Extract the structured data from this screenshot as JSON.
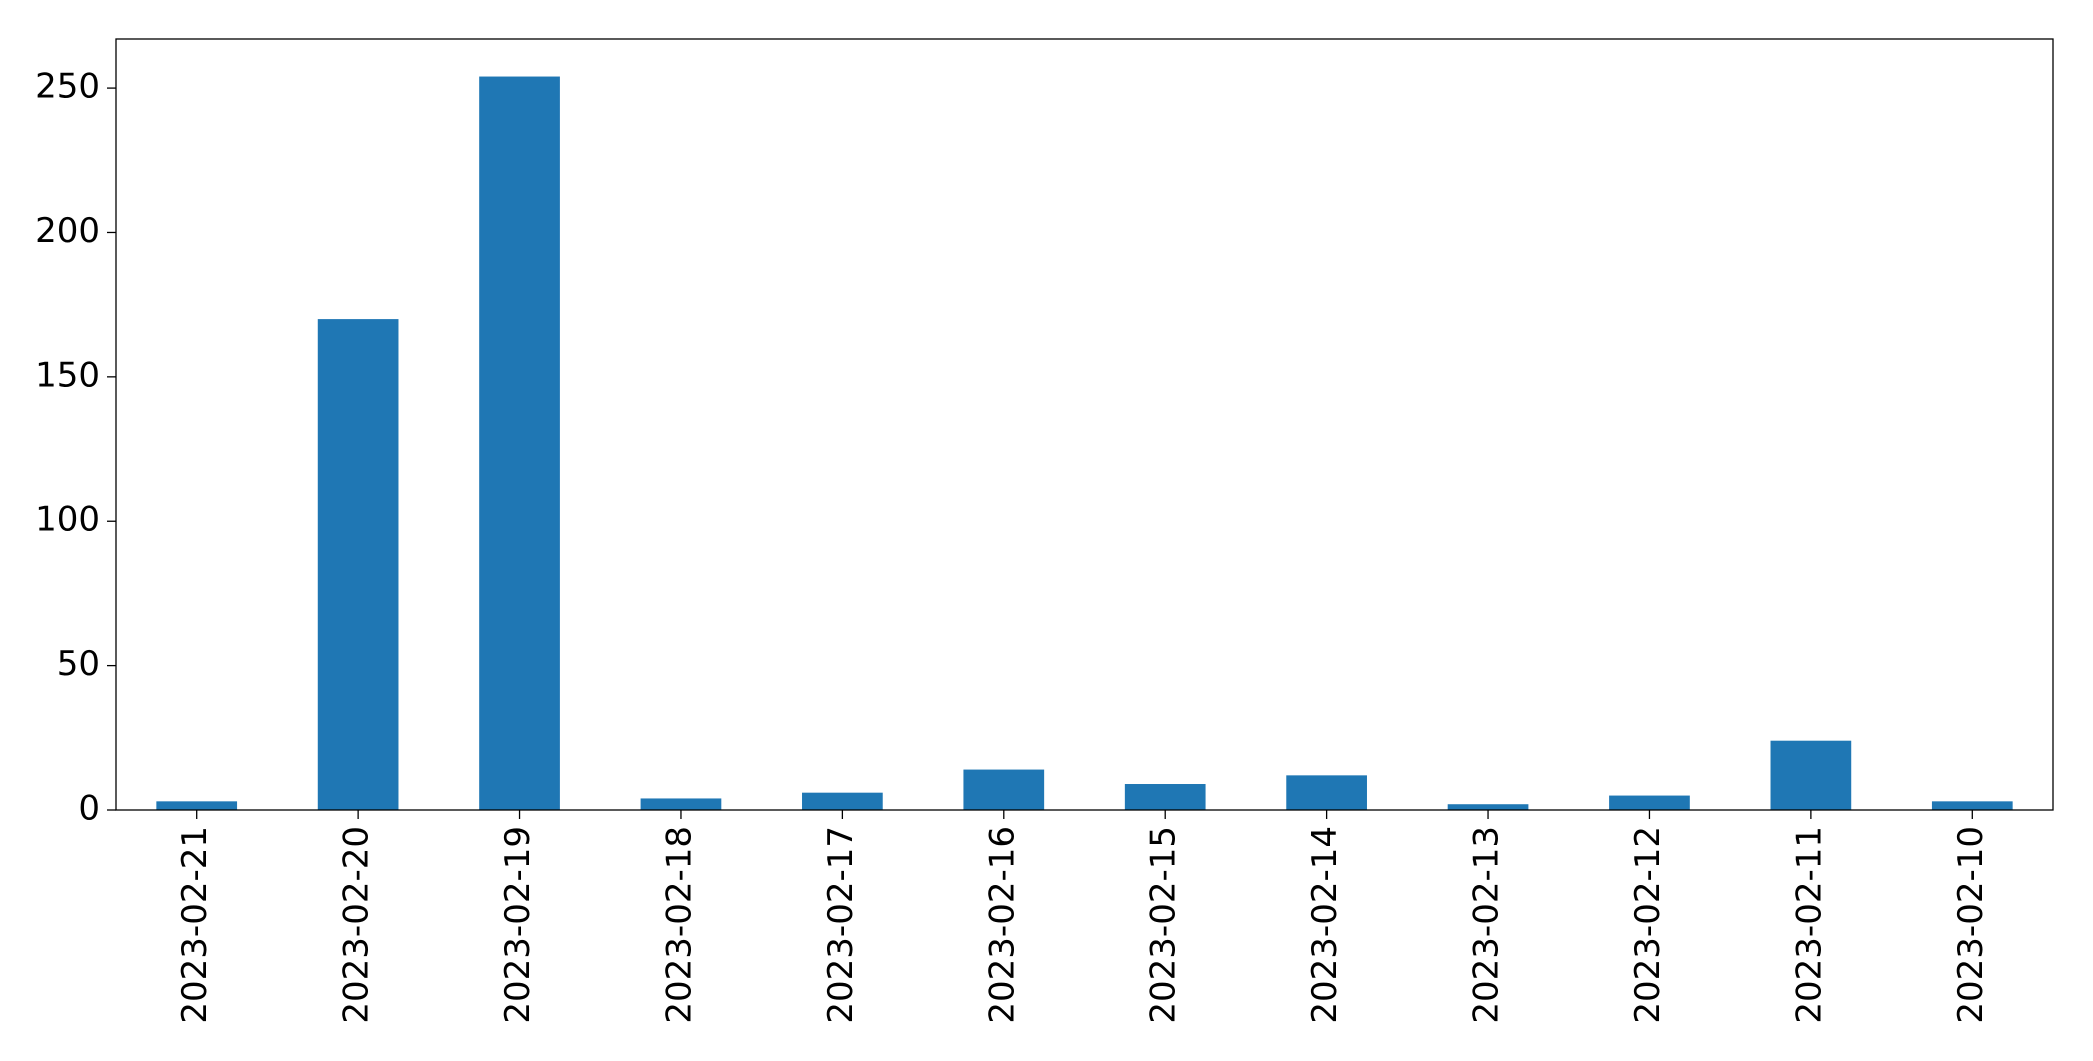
{
  "chart_data": {
    "type": "bar",
    "categories": [
      "2023-02-21",
      "2023-02-20",
      "2023-02-19",
      "2023-02-18",
      "2023-02-17",
      "2023-02-16",
      "2023-02-15",
      "2023-02-14",
      "2023-02-13",
      "2023-02-12",
      "2023-02-11",
      "2023-02-10"
    ],
    "values": [
      3,
      170,
      254,
      4,
      6,
      14,
      9,
      12,
      2,
      5,
      24,
      3
    ],
    "color": "#1f77b4",
    "ylim": [
      0,
      267
    ],
    "yticks": [
      0,
      50,
      100,
      150,
      200,
      250
    ],
    "grid": false
  }
}
